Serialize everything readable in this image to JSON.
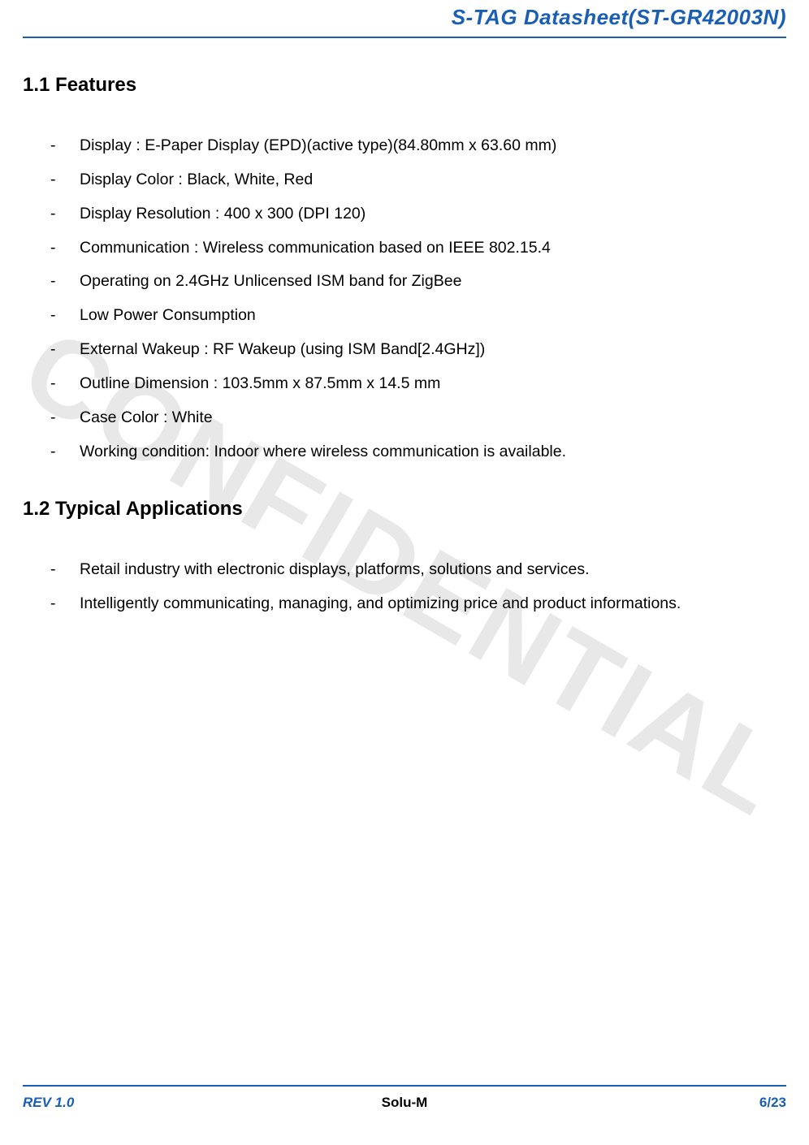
{
  "header": {
    "title": "S-TAG Datasheet(ST-GR42003N)"
  },
  "watermark": "CONFIDENTIAL",
  "sections": {
    "features": {
      "heading": "1.1 Features",
      "items": [
        "Display : E-Paper Display (EPD)(active type)(84.80mm x 63.60 mm)",
        "Display Color : Black, White, Red",
        "Display Resolution : 400 x 300 (DPI 120)",
        "Communication : Wireless communication based on IEEE 802.15.4",
        "Operating on 2.4GHz Unlicensed ISM band for ZigBee",
        "Low Power Consumption",
        "External Wakeup : RF Wakeup (using ISM Band[2.4GHz])",
        "Outline Dimension : 103.5mm x 87.5mm x 14.5 mm",
        "Case Color : White",
        "Working condition: Indoor where wireless communication is available."
      ]
    },
    "applications": {
      "heading": "1.2 Typical Applications",
      "items": [
        "Retail industry with electronic displays, platforms, solutions and services.",
        "Intelligently communicating, managing, and optimizing price and product informations."
      ]
    }
  },
  "footer": {
    "left": "REV 1.0",
    "center": "Solu-M",
    "right": "6/23"
  },
  "colors": {
    "accent": "#1a5fb4",
    "text": "#000000",
    "watermark": "rgba(0,0,0,0.09)",
    "background": "#ffffff"
  }
}
